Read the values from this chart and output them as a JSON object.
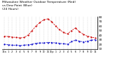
{
  "title_line1": "Milwaukee Weather Outdoor Temperature (Red)",
  "title_line2": "vs Dew Point (Blue)",
  "title_line3": "(24 Hours)",
  "title_fontsize": 3.2,
  "bg_color": "#ffffff",
  "red_values": [
    38,
    37,
    36,
    35,
    34,
    35,
    40,
    50,
    60,
    68,
    74,
    76,
    70,
    60,
    52,
    46,
    43,
    50,
    56,
    48,
    42,
    38,
    36,
    34
  ],
  "blue_values": [
    20,
    19,
    18,
    18,
    17,
    18,
    19,
    20,
    22,
    23,
    23,
    24,
    24,
    23,
    22,
    21,
    20,
    26,
    29,
    27,
    25,
    27,
    29,
    30
  ],
  "x_labels": [
    "12a",
    "1",
    "2",
    "3",
    "4",
    "5",
    "6",
    "7",
    "8",
    "9",
    "10",
    "11",
    "12p",
    "1",
    "2",
    "3",
    "4",
    "5",
    "6",
    "7",
    "8",
    "9",
    "10",
    "11"
  ],
  "ylim": [
    10,
    80
  ],
  "yticks": [
    10,
    20,
    30,
    40,
    50,
    60,
    70,
    80
  ],
  "ytick_labels": [
    "10",
    "20",
    "30",
    "40",
    "50",
    "60",
    "70",
    "80"
  ],
  "red_color": "#cc0000",
  "blue_color": "#0000cc",
  "grid_color": "#bbbbbb",
  "tick_fontsize": 2.5,
  "ytick_fontsize": 3.0
}
